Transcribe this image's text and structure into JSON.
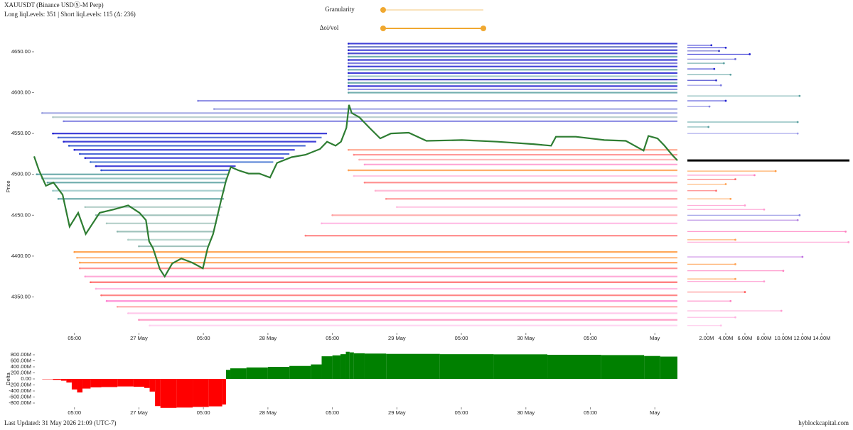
{
  "header": {
    "title": "XAUUSDT (Binance USDⓈ-M Perp)",
    "stats": "Long liqLevels: 351 | Short liqLevels: 115 (Δ: 236)"
  },
  "controls": {
    "granularity": "Granularity",
    "oivol": "Δoi/vol"
  },
  "footer": {
    "updated": "Last Updated: 31 May 2026 21:09 (UTC-7)",
    "site": "hyblockcapital.com"
  },
  "chart_data": [
    {
      "type": "line",
      "ylabel": "Price",
      "color": "#2e7d32",
      "x": [
        4.5,
        5.4,
        6.7,
        8.1,
        9.8,
        11.1,
        12.7,
        14.1,
        15.1,
        16.7,
        19.3,
        22.0,
        24.1,
        25.3,
        25.9,
        26.6,
        27.9,
        28.8,
        30.2,
        31.9,
        33.9,
        35.9,
        36.8,
        37.8,
        39.2,
        40.2,
        41.1,
        42.5,
        44.4,
        46.4,
        48.4,
        49.7,
        52.4,
        55.0,
        57.7,
        59.0,
        60.6,
        61.6,
        62.6,
        63.1,
        63.6,
        65.0,
        66.9,
        68.9,
        70.9,
        74.2,
        77.5,
        84.1,
        90.7,
        97.4,
        100.7,
        101.6,
        105.3,
        110.6,
        114.6,
        117.9,
        118.8,
        120.5,
        121.8,
        123.2,
        124.2
      ],
      "values": [
        4522,
        4505,
        4486,
        4490,
        4475,
        4436,
        4453,
        4427,
        4437,
        4453,
        4457,
        4462,
        4453,
        4444,
        4418,
        4410,
        4384,
        4375,
        4391,
        4397,
        4392,
        4385,
        4410,
        4427,
        4466,
        4492,
        4509,
        4505,
        4501,
        4501,
        4496,
        4514,
        4521,
        4524,
        4531,
        4540,
        4535,
        4540,
        4557,
        4585,
        4575,
        4570,
        4557,
        4544,
        4550,
        4551,
        4541,
        4542,
        4540,
        4537,
        4535,
        4546,
        4546,
        4542,
        4541,
        4529,
        4547,
        4544,
        4535,
        4524,
        4517
      ],
      "xlim": [
        4.5,
        124.2
      ],
      "ylim": [
        4307,
        4663
      ],
      "xticks": [
        {
          "value": 12,
          "label": "05:00"
        },
        {
          "value": 24,
          "label": "27 May"
        },
        {
          "value": 36,
          "label": "05:00"
        },
        {
          "value": 48,
          "label": "28 May"
        },
        {
          "value": 60,
          "label": "05:00"
        },
        {
          "value": 72,
          "label": "29 May"
        },
        {
          "value": 84,
          "label": "05:00"
        },
        {
          "value": 96,
          "label": "30 May"
        },
        {
          "value": 108,
          "label": "05:00"
        },
        {
          "value": 120,
          "label": "May"
        }
      ],
      "yticks": [
        {
          "value": 4350,
          "label": "4350.00"
        },
        {
          "value": 4400,
          "label": "4400.00"
        },
        {
          "value": 4450,
          "label": "4450.00"
        },
        {
          "value": 4500,
          "label": "4500.00"
        },
        {
          "value": 4550,
          "label": "4550.00"
        },
        {
          "value": 4600,
          "label": "4600.00"
        },
        {
          "value": 4650,
          "label": "4650.00"
        }
      ],
      "levels": [
        {
          "price": 4660,
          "start": 63,
          "end": null,
          "color": "#2020d0"
        },
        {
          "price": 4656,
          "start": 63,
          "end": null,
          "color": "#6070c0"
        },
        {
          "price": 4652,
          "start": 63,
          "end": null,
          "color": "#2020d0"
        },
        {
          "price": 4648,
          "start": 63,
          "end": null,
          "color": "#3030c8"
        },
        {
          "price": 4644,
          "start": 63,
          "end": null,
          "color": "#5aa0a0"
        },
        {
          "price": 4640,
          "start": 63,
          "end": null,
          "color": "#2020d0"
        },
        {
          "price": 4636,
          "start": 63,
          "end": null,
          "color": "#6a6ad8"
        },
        {
          "price": 4632,
          "start": 63,
          "end": null,
          "color": "#2020d0"
        },
        {
          "price": 4628,
          "start": 63,
          "end": null,
          "color": "#5aa0a0"
        },
        {
          "price": 4624,
          "start": 63,
          "end": null,
          "color": "#2020d0"
        },
        {
          "price": 4620,
          "start": 63,
          "end": null,
          "color": "#8fc0c0"
        },
        {
          "price": 4616,
          "start": 63,
          "end": null,
          "color": "#3030c8"
        },
        {
          "price": 4612,
          "start": 63,
          "end": null,
          "color": "#5aa0a0"
        },
        {
          "price": 4608,
          "start": 63,
          "end": null,
          "color": "#2020d0"
        },
        {
          "price": 4604,
          "start": 63,
          "end": null,
          "color": "#8080e0"
        },
        {
          "price": 4600,
          "start": 63,
          "end": null,
          "color": "#5aa0a0"
        },
        {
          "price": 4590,
          "start": 35,
          "end": null,
          "color": "#8080e0"
        },
        {
          "price": 4580,
          "start": 38,
          "end": null,
          "color": "#9aa0e0"
        },
        {
          "price": 4575,
          "start": 6,
          "end": null,
          "color": "#9aa0e0"
        },
        {
          "price": 4570,
          "start": 8,
          "end": null,
          "color": "#b0c8c8"
        },
        {
          "price": 4565,
          "start": 10,
          "end": null,
          "color": "#8080e0"
        },
        {
          "price": 4550,
          "start": 8,
          "end": 59,
          "color": "#2020d0"
        },
        {
          "price": 4545,
          "start": 9,
          "end": 58,
          "color": "#4060d0"
        },
        {
          "price": 4540,
          "start": 10,
          "end": 57,
          "color": "#2020d0"
        },
        {
          "price": 4535,
          "start": 11,
          "end": 55,
          "color": "#2a50c8"
        },
        {
          "price": 4530,
          "start": 12,
          "end": 53,
          "color": "#2020d0"
        },
        {
          "price": 4525,
          "start": 13,
          "end": 52,
          "color": "#3050d0"
        },
        {
          "price": 4520,
          "start": 14,
          "end": 51,
          "color": "#2020d0"
        },
        {
          "price": 4515,
          "start": 15,
          "end": 49,
          "color": "#4070d0"
        },
        {
          "price": 4510,
          "start": 16,
          "end": 42,
          "color": "#2020d0"
        },
        {
          "price": 4505,
          "start": 17,
          "end": 41,
          "color": "#3050d0"
        },
        {
          "price": 4500,
          "start": 5,
          "end": 40.5,
          "color": "#5aa0a0"
        },
        {
          "price": 4495,
          "start": 6,
          "end": 40.3,
          "color": "#80b8b8"
        },
        {
          "price": 4490,
          "start": 7,
          "end": 40.2,
          "color": "#5aa0a0"
        },
        {
          "price": 4480,
          "start": 8,
          "end": 40,
          "color": "#9ac8c8"
        },
        {
          "price": 4470,
          "start": 9,
          "end": 39.8,
          "color": "#5aa0a0"
        },
        {
          "price": 4460,
          "start": 14,
          "end": 39.5,
          "color": "#a8c8c0"
        },
        {
          "price": 4450,
          "start": 16,
          "end": 39,
          "color": "#8fb8b0"
        },
        {
          "price": 4440,
          "start": 18,
          "end": 38.5,
          "color": "#a8c8c0"
        },
        {
          "price": 4430,
          "start": 20,
          "end": 38,
          "color": "#8fb8b0"
        },
        {
          "price": 4420,
          "start": 22,
          "end": 37.5,
          "color": "#b0d0c8"
        },
        {
          "price": 4412,
          "start": 24,
          "end": 37,
          "color": "#8fb8b0"
        },
        {
          "price": 4405,
          "start": 12,
          "end": null,
          "color": "#ff9a40"
        },
        {
          "price": 4398,
          "start": 12.5,
          "end": null,
          "color": "#ffb070"
        },
        {
          "price": 4392,
          "start": 13,
          "end": null,
          "color": "#ffa050"
        },
        {
          "price": 4385,
          "start": 13,
          "end": null,
          "color": "#ff8080"
        },
        {
          "price": 4375,
          "start": 14,
          "end": null,
          "color": "#ff9ad0"
        },
        {
          "price": 4368,
          "start": 15,
          "end": null,
          "color": "#ff6060"
        },
        {
          "price": 4360,
          "start": 16,
          "end": null,
          "color": "#ffb0e0"
        },
        {
          "price": 4352,
          "start": 17,
          "end": null,
          "color": "#ff7070"
        },
        {
          "price": 4345,
          "start": 18,
          "end": null,
          "color": "#ff80d0"
        },
        {
          "price": 4338,
          "start": 20,
          "end": null,
          "color": "#ffa0a0"
        },
        {
          "price": 4330,
          "start": 22,
          "end": null,
          "color": "#ffc0e8"
        },
        {
          "price": 4322,
          "start": 24,
          "end": null,
          "color": "#ff90c0"
        },
        {
          "price": 4315,
          "start": 26,
          "end": null,
          "color": "#ffd0f0"
        },
        {
          "price": 4530,
          "start": 63,
          "end": null,
          "color": "#ff9a80"
        },
        {
          "price": 4524,
          "start": 64,
          "end": null,
          "color": "#ff8a8a"
        },
        {
          "price": 4518,
          "start": 65,
          "end": null,
          "color": "#ffb0b0"
        },
        {
          "price": 4512,
          "start": 66,
          "end": null,
          "color": "#ff9ad0"
        },
        {
          "price": 4505,
          "start": 63,
          "end": null,
          "color": "#ffa050"
        },
        {
          "price": 4498,
          "start": 64,
          "end": null,
          "color": "#ffc0e0"
        },
        {
          "price": 4490,
          "start": 66,
          "end": null,
          "color": "#ff8080"
        },
        {
          "price": 4480,
          "start": 68,
          "end": null,
          "color": "#ffb0d0"
        },
        {
          "price": 4470,
          "start": 70,
          "end": null,
          "color": "#ff9090"
        },
        {
          "price": 4460,
          "start": 72,
          "end": null,
          "color": "#ffc0e0"
        },
        {
          "price": 4450,
          "start": 60,
          "end": null,
          "color": "#ffa0a0"
        },
        {
          "price": 4440,
          "start": 58,
          "end": null,
          "color": "#ffb0e0"
        },
        {
          "price": 4425,
          "start": 55,
          "end": null,
          "color": "#ff8080"
        }
      ]
    },
    {
      "type": "bar",
      "orientation": "horizontal",
      "current_price": 4517,
      "y": [
        4658,
        4655,
        4651,
        4647,
        4641,
        4636,
        4629,
        4622,
        4615,
        4609,
        4596,
        4590,
        4583,
        4564,
        4558,
        4550,
        4504,
        4499,
        4494,
        4488,
        4480,
        4470,
        4462,
        4457,
        4450,
        4444,
        4430,
        4420,
        4417,
        4399,
        4390,
        4382,
        4372,
        4369,
        4356,
        4345,
        4333,
        4325,
        4315
      ],
      "values": [
        2500000,
        4000000,
        3300000,
        6500000,
        5000000,
        3800000,
        2800000,
        4500000,
        3000000,
        3500000,
        11700000,
        4000000,
        2300000,
        11500000,
        2200000,
        11500000,
        9200000,
        7000000,
        5000000,
        4000000,
        3000000,
        4500000,
        6000000,
        8000000,
        11700000,
        11500000,
        16500000,
        5000000,
        16800000,
        12000000,
        5000000,
        10000000,
        5000000,
        8000000,
        6000000,
        4500000,
        9800000,
        5000000,
        3500000
      ],
      "colors": [
        "#2020d0",
        "#2020d0",
        "#4040c0",
        "#2020d0",
        "#6a6ad8",
        "#5aa0a0",
        "#2020d0",
        "#5aa0a0",
        "#3030c8",
        "#7a7ae0",
        "#5aa0a0",
        "#2020d0",
        "#8080e0",
        "#5aa0a0",
        "#5aa0a0",
        "#9a9ae8",
        "#ff9a40",
        "#ff80c0",
        "#ff6060",
        "#ffa050",
        "#ff7070",
        "#ffa050",
        "#ff9ad0",
        "#ff9ad0",
        "#8080e0",
        "#b080e0",
        "#ff80c0",
        "#ffa050",
        "#ff9ad0",
        "#c070e0",
        "#ffa050",
        "#ff80c0",
        "#ffa050",
        "#ff9ad0",
        "#ff6060",
        "#ff80c0",
        "#ff9ad0",
        "#ffb0e0",
        "#ffc0e8"
      ],
      "xlim": [
        0,
        16900000
      ],
      "ylim": [
        4307,
        4663
      ],
      "xticks": [
        {
          "value": 2000000,
          "label": "2.00M"
        },
        {
          "value": 4000000,
          "label": "4.00M"
        },
        {
          "value": 6000000,
          "label": "6.00M"
        },
        {
          "value": 8000000,
          "label": "8.00M"
        },
        {
          "value": 10000000,
          "label": "10.00M"
        },
        {
          "value": 12000000,
          "label": "12.00M"
        },
        {
          "value": 14000000,
          "label": "14.00M"
        }
      ]
    },
    {
      "type": "area",
      "ylabel": "Delta",
      "colors": {
        "positive": "#008000",
        "negative": "#ff0000"
      },
      "x": [
        4.5,
        6,
        8,
        9.5,
        10.5,
        11.5,
        12.5,
        13.5,
        15,
        17,
        20,
        23,
        25,
        26,
        27,
        28,
        31,
        34,
        37,
        39.5,
        40.2,
        41,
        44,
        48,
        52,
        56,
        58,
        60,
        61.5,
        62.5,
        63.2,
        64,
        66,
        70,
        80,
        90,
        100,
        110,
        118,
        121
      ],
      "values": [
        0,
        -10000000,
        -30000000,
        -60000000,
        -120000000,
        -350000000,
        -450000000,
        -320000000,
        -280000000,
        -270000000,
        -250000000,
        -260000000,
        -300000000,
        -420000000,
        -900000000,
        -960000000,
        -950000000,
        -930000000,
        -910000000,
        -850000000,
        300000000,
        350000000,
        380000000,
        400000000,
        430000000,
        480000000,
        750000000,
        780000000,
        820000000,
        900000000,
        880000000,
        850000000,
        840000000,
        830000000,
        820000000,
        815000000,
        800000000,
        790000000,
        760000000,
        740000000
      ],
      "xlim": [
        4.5,
        124.2
      ],
      "ylim": [
        -1035000000,
        1035000000
      ],
      "xticks": [
        {
          "value": 12,
          "label": "05:00"
        },
        {
          "value": 24,
          "label": "27 May"
        },
        {
          "value": 36,
          "label": "05:00"
        },
        {
          "value": 48,
          "label": "28 May"
        },
        {
          "value": 60,
          "label": "05:00"
        },
        {
          "value": 72,
          "label": "29 May"
        },
        {
          "value": 84,
          "label": "05:00"
        },
        {
          "value": 96,
          "label": "30 May"
        },
        {
          "value": 108,
          "label": "05:00"
        },
        {
          "value": 120,
          "label": "May"
        }
      ],
      "yticks": [
        {
          "value": -800000000,
          "label": "-800.00M"
        },
        {
          "value": -600000000,
          "label": "-600.00M"
        },
        {
          "value": -400000000,
          "label": "-400.00M"
        },
        {
          "value": -200000000,
          "label": "-200.00M"
        },
        {
          "value": 0,
          "label": "0.00"
        },
        {
          "value": 200000000,
          "label": "200.00M"
        },
        {
          "value": 400000000,
          "label": "400.00M"
        },
        {
          "value": 600000000,
          "label": "600.00M"
        },
        {
          "value": 800000000,
          "label": "800.00M"
        }
      ]
    }
  ]
}
